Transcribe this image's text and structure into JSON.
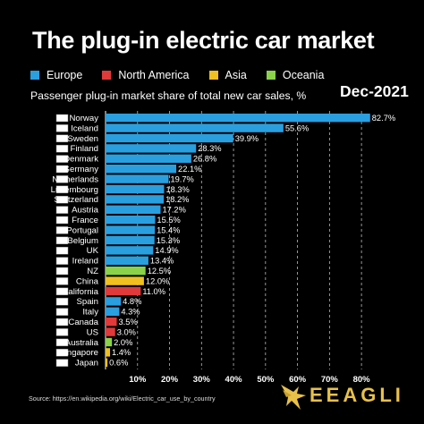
{
  "header": {
    "title": "The plug-in electric car market",
    "subtitle": "Passenger plug-in market share of total new car sales, %",
    "date": "Dec-2021"
  },
  "legend": [
    {
      "label": "Europe",
      "color": "#2a9fe0"
    },
    {
      "label": "North America",
      "color": "#e03a3a"
    },
    {
      "label": "Asia",
      "color": "#f0c020"
    },
    {
      "label": "Oceania",
      "color": "#8ad24a"
    }
  ],
  "chart_data": {
    "type": "bar",
    "orientation": "horizontal",
    "title": "The plug-in electric car market",
    "subtitle": "Passenger plug-in market share of total new car sales, %",
    "xlim": [
      0,
      85
    ],
    "xticks": [
      "10%",
      "20%",
      "30%",
      "40%",
      "50%",
      "60%",
      "70%",
      "80%"
    ],
    "grid": "vertical dashed",
    "categories": [
      "Norway",
      "Iceland",
      "Sweden",
      "Finland",
      "Denmark",
      "Germany",
      "Netherlands",
      "Luxembourg",
      "Switzerland",
      "Austria",
      "France",
      "Portugal",
      "Belgium",
      "UK",
      "Ireland",
      "NZ",
      "China",
      "California",
      "Spain",
      "Italy",
      "Canada",
      "US",
      "Australia",
      "Singapore",
      "Japan"
    ],
    "values": [
      82.7,
      55.6,
      39.9,
      28.3,
      26.8,
      22.1,
      19.7,
      18.3,
      18.2,
      17.2,
      15.5,
      15.4,
      15.3,
      14.9,
      13.4,
      12.5,
      12.0,
      11.0,
      4.8,
      4.3,
      3.5,
      3.0,
      2.0,
      1.4,
      0.6
    ],
    "value_labels": [
      "82.7%",
      "55.6%",
      "39.9%",
      "28.3%",
      "26.8%",
      "22.1%",
      "19.7%",
      "18.3%",
      "18.2%",
      "17.2%",
      "15.5%",
      "15.4%",
      "15.3%",
      "14.9%",
      "13.4%",
      "12.5%",
      "12.0%",
      "11.0%",
      "4.8%",
      "4.3%",
      "3.5%",
      "3.0%",
      "2.0%",
      "1.4%",
      "0.6%"
    ],
    "regions": [
      "Europe",
      "Europe",
      "Europe",
      "Europe",
      "Europe",
      "Europe",
      "Europe",
      "Europe",
      "Europe",
      "Europe",
      "Europe",
      "Europe",
      "Europe",
      "Europe",
      "Europe",
      "Oceania",
      "Asia",
      "North America",
      "Europe",
      "Europe",
      "North America",
      "North America",
      "Oceania",
      "Asia",
      "Asia"
    ]
  },
  "footer": {
    "source": "Source: https://en.wikipedia.org/wiki/Electric_car_use_by_country",
    "brand": "EEAGLI"
  }
}
